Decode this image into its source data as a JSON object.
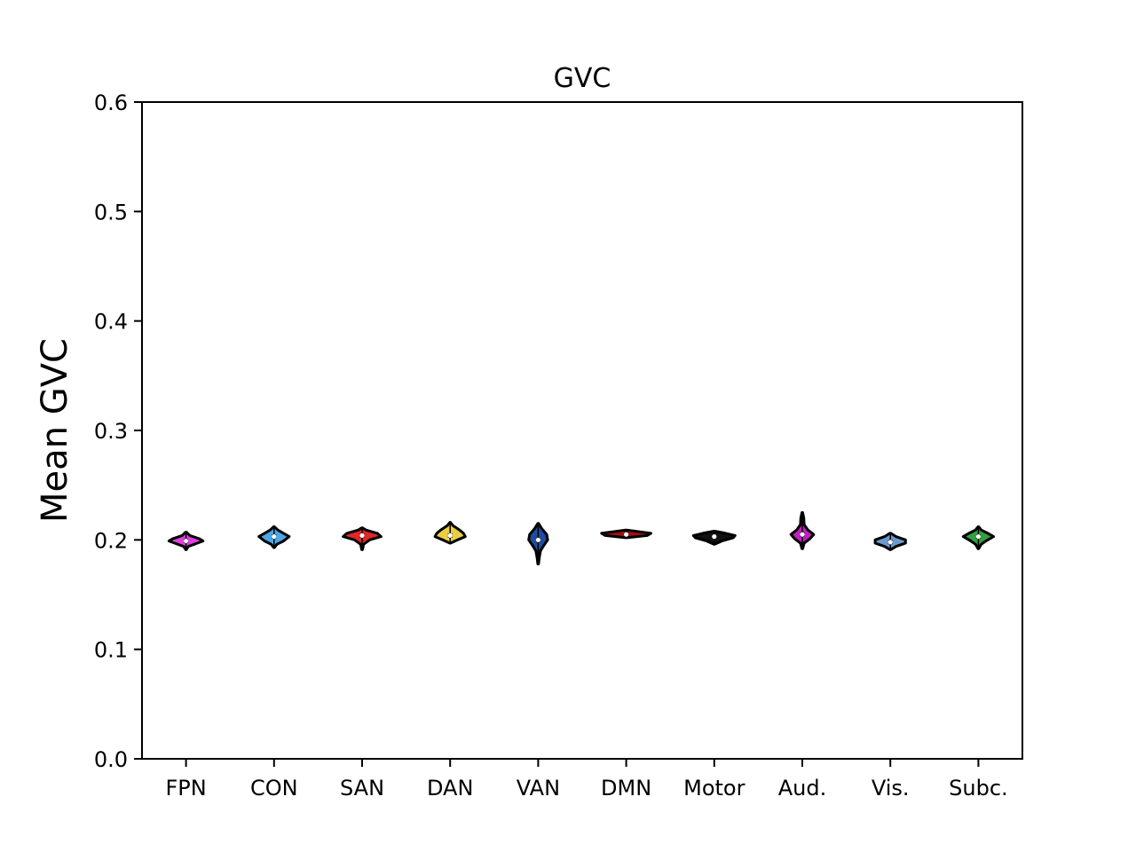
{
  "chart_data": {
    "type": "violin",
    "title": "GVC",
    "xlabel": "",
    "ylabel": "Mean GVC",
    "ylim": [
      0.0,
      0.6
    ],
    "yticks": [
      "0.0",
      "0.1",
      "0.2",
      "0.3",
      "0.4",
      "0.5",
      "0.6"
    ],
    "categories": [
      "FPN",
      "CON",
      "SAN",
      "DAN",
      "VAN",
      "DMN",
      "Motor",
      "Aud.",
      "Vis.",
      "Subc."
    ],
    "colors": [
      "#e040e0",
      "#4aa8e8",
      "#e02828",
      "#e8d040",
      "#1f4ea0",
      "#a01010",
      "#111111",
      "#c020c0",
      "#6a9ad0",
      "#30a040"
    ],
    "series": [
      {
        "category": "FPN",
        "median": 0.199,
        "min": 0.191,
        "max": 0.207,
        "profile": [
          [
            0.191,
            0.2
          ],
          [
            0.194,
            1.2
          ],
          [
            0.197,
            6
          ],
          [
            0.199,
            9
          ],
          [
            0.201,
            7
          ],
          [
            0.204,
            2
          ],
          [
            0.207,
            0.3
          ]
        ]
      },
      {
        "category": "CON",
        "median": 0.203,
        "min": 0.193,
        "max": 0.212,
        "profile": [
          [
            0.193,
            0.2
          ],
          [
            0.196,
            1.5
          ],
          [
            0.199,
            5
          ],
          [
            0.203,
            8
          ],
          [
            0.206,
            5
          ],
          [
            0.209,
            2
          ],
          [
            0.212,
            0.2
          ]
        ]
      },
      {
        "category": "SAN",
        "median": 0.204,
        "min": 0.191,
        "max": 0.211,
        "profile": [
          [
            0.191,
            0.2
          ],
          [
            0.196,
            0.8
          ],
          [
            0.2,
            4
          ],
          [
            0.203,
            10
          ],
          [
            0.206,
            8
          ],
          [
            0.209,
            2
          ],
          [
            0.211,
            0.2
          ]
        ]
      },
      {
        "category": "DAN",
        "median": 0.204,
        "min": 0.197,
        "max": 0.216,
        "profile": [
          [
            0.197,
            0.2
          ],
          [
            0.2,
            4
          ],
          [
            0.203,
            8
          ],
          [
            0.206,
            7
          ],
          [
            0.209,
            5
          ],
          [
            0.213,
            1.5
          ],
          [
            0.216,
            0.2
          ]
        ]
      },
      {
        "category": "VAN",
        "median": 0.2,
        "min": 0.178,
        "max": 0.215,
        "profile": [
          [
            0.178,
            0.2
          ],
          [
            0.184,
            0.6
          ],
          [
            0.19,
            1.2
          ],
          [
            0.195,
            3
          ],
          [
            0.2,
            5
          ],
          [
            0.205,
            4.5
          ],
          [
            0.21,
            2
          ],
          [
            0.215,
            0.2
          ]
        ]
      },
      {
        "category": "DMN",
        "median": 0.205,
        "min": 0.202,
        "max": 0.209,
        "profile": [
          [
            0.202,
            0.3
          ],
          [
            0.204,
            11
          ],
          [
            0.206,
            13
          ],
          [
            0.207,
            9
          ],
          [
            0.209,
            0.3
          ]
        ]
      },
      {
        "category": "Motor",
        "median": 0.203,
        "min": 0.196,
        "max": 0.208,
        "profile": [
          [
            0.196,
            0.2
          ],
          [
            0.199,
            4
          ],
          [
            0.202,
            10
          ],
          [
            0.204,
            11
          ],
          [
            0.206,
            6
          ],
          [
            0.208,
            0.3
          ]
        ]
      },
      {
        "category": "Aud.",
        "median": 0.205,
        "min": 0.192,
        "max": 0.225,
        "profile": [
          [
            0.192,
            0.2
          ],
          [
            0.197,
            1
          ],
          [
            0.201,
            4
          ],
          [
            0.205,
            6
          ],
          [
            0.209,
            3
          ],
          [
            0.214,
            1
          ],
          [
            0.22,
            0.8
          ],
          [
            0.225,
            0.2
          ]
        ]
      },
      {
        "category": "Vis.",
        "median": 0.198,
        "min": 0.191,
        "max": 0.206,
        "profile": [
          [
            0.191,
            0.2
          ],
          [
            0.194,
            3
          ],
          [
            0.197,
            8
          ],
          [
            0.2,
            8
          ],
          [
            0.203,
            3
          ],
          [
            0.206,
            0.3
          ]
        ]
      },
      {
        "category": "Subc.",
        "median": 0.203,
        "min": 0.192,
        "max": 0.212,
        "profile": [
          [
            0.192,
            0.2
          ],
          [
            0.196,
            1.5
          ],
          [
            0.199,
            4
          ],
          [
            0.203,
            8
          ],
          [
            0.206,
            5
          ],
          [
            0.209,
            1.5
          ],
          [
            0.212,
            0.2
          ]
        ]
      }
    ],
    "grid": false,
    "legend": "none"
  }
}
